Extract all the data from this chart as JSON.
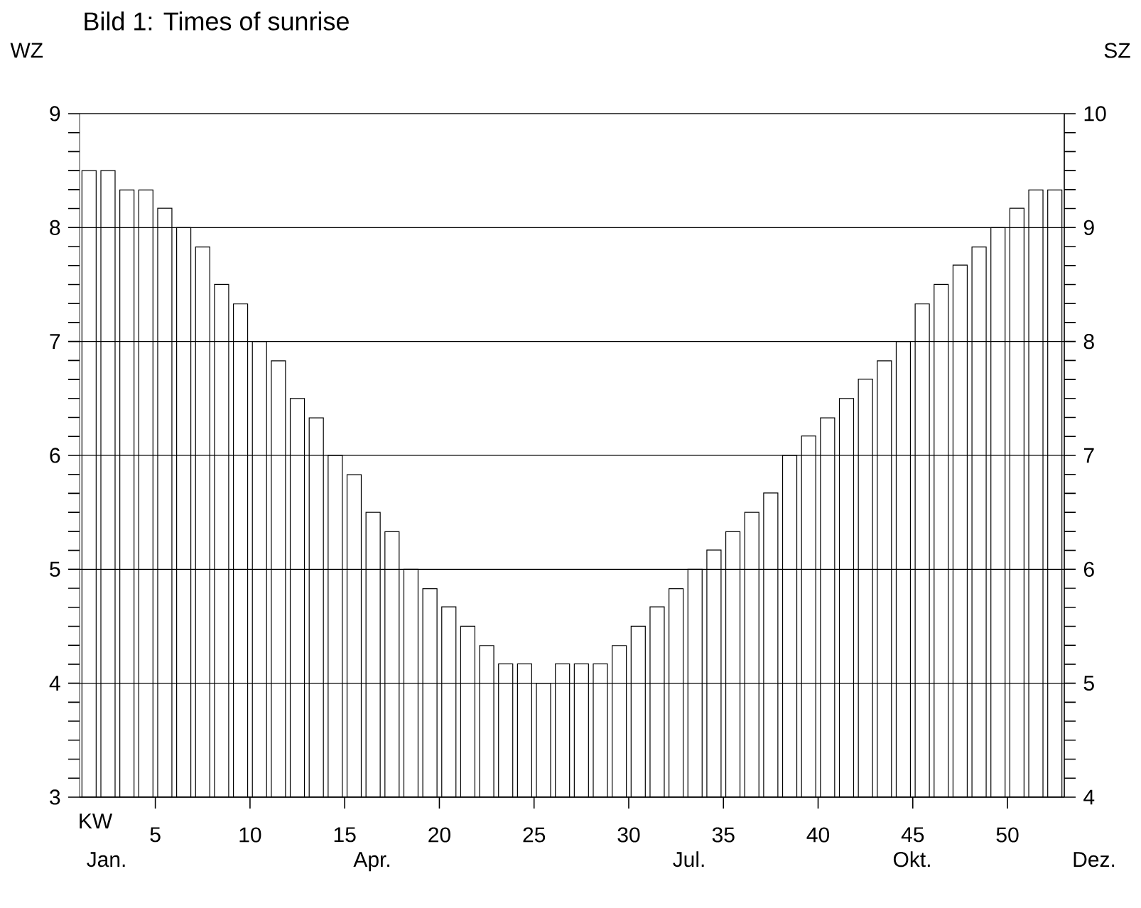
{
  "chart_data": {
    "type": "bar",
    "title": "Bild 1: Times of sunrise",
    "ylabel": "WZ",
    "y2label": "SZ",
    "xlabel": "KW",
    "x": [
      1.5,
      2.5,
      3.5,
      4.5,
      5.5,
      6.5,
      7.5,
      8.5,
      9.5,
      10.5,
      11.5,
      12.5,
      13.5,
      14.5,
      15.5,
      16.5,
      17.5,
      18.5,
      19.5,
      20.5,
      21.5,
      22.5,
      23.5,
      24.5,
      25.5,
      26.5,
      27.5,
      28.5,
      29.5,
      30.5,
      31.5,
      32.5,
      33.5,
      34.5,
      35.5,
      36.5,
      37.5,
      38.5,
      39.5,
      40.5,
      41.5,
      42.5,
      43.5,
      44.5,
      45.5,
      46.5,
      47.5,
      48.5,
      49.5,
      50.5,
      51.5,
      52.5
    ],
    "values": [
      8.5,
      8.5,
      8.33,
      8.33,
      8.17,
      8,
      7.83,
      7.5,
      7.33,
      7,
      6.83,
      6.5,
      6.33,
      6,
      5.83,
      5.5,
      5.33,
      5,
      4.83,
      4.67,
      4.5,
      4.33,
      4.17,
      4.17,
      4,
      4.17,
      4.17,
      4.17,
      4.33,
      4.5,
      4.67,
      4.83,
      5,
      5.17,
      5.33,
      5.5,
      5.67,
      6,
      6.17,
      6.33,
      6.5,
      6.67,
      6.83,
      7,
      7.33,
      7.5,
      7.67,
      7.83,
      8,
      8.17,
      8.33,
      8.33
    ],
    "color": "#ffffff",
    "xlim": [
      1,
      53
    ],
    "xticks": [
      5,
      10,
      15,
      20,
      25,
      30,
      35,
      40,
      45,
      50
    ],
    "ylim": [
      3,
      9
    ],
    "yticks": [
      3,
      4,
      5,
      6,
      7,
      8,
      9
    ],
    "y2lim": [
      4,
      10
    ],
    "y2ticks": [
      4,
      5,
      6,
      7,
      8,
      9,
      10
    ],
    "grid": "y",
    "annotations": [
      "Jan.",
      "Apr.",
      "Jul.",
      "Okt.",
      "Dez."
    ]
  }
}
